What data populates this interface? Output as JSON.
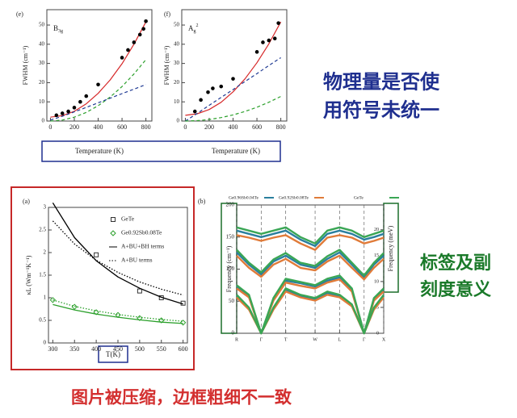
{
  "chart_data": [
    {
      "type": "scatter",
      "panel_label": "(e)",
      "label": "B",
      "label_sub": "3g",
      "ylabel": "FWHM (cm⁻¹)",
      "xlabel": "Temperature  (K)",
      "xlim": [
        -30,
        850
      ],
      "ylim": [
        0,
        58
      ],
      "xticks": [
        0,
        200,
        400,
        600,
        800
      ],
      "yticks": [
        0,
        10,
        20,
        30,
        40,
        50
      ],
      "points": {
        "color": "#000000",
        "x": [
          50,
          100,
          150,
          200,
          250,
          300,
          400,
          600,
          650,
          700,
          750,
          780,
          800
        ],
        "values": [
          3,
          4,
          5,
          7,
          10,
          13,
          19,
          33,
          37,
          41,
          45,
          48,
          52
        ]
      },
      "series": [
        {
          "color": "#d62728",
          "style": "solid",
          "x": [
            0,
            100,
            200,
            300,
            400,
            500,
            600,
            700,
            800
          ],
          "values": [
            2,
            2.8,
            5.1,
            9.0,
            14.4,
            21.4,
            29.9,
            40.0,
            51.6
          ]
        },
        {
          "color": "#2ca02c",
          "style": "dashed",
          "x": [
            0,
            100,
            200,
            300,
            400,
            500,
            600,
            700,
            800
          ],
          "values": [
            0,
            0.5,
            2,
            4.5,
            8,
            12.5,
            18,
            24.5,
            32
          ]
        },
        {
          "color": "#1f3a93",
          "style": "dashed",
          "x": [
            0,
            100,
            200,
            300,
            400,
            500,
            600,
            700,
            800
          ],
          "values": [
            0.5,
            2.5,
            4.8,
            7.1,
            9.5,
            11.9,
            14.3,
            16.6,
            19
          ]
        }
      ]
    },
    {
      "type": "scatter",
      "panel_label": "(f)",
      "label": "A",
      "label_sub": "g",
      "label_sup": "2",
      "ylabel": "FWHM (cm⁻¹)",
      "xlabel": "Temperature  (K)",
      "xlim": [
        -30,
        850
      ],
      "ylim": [
        0,
        58
      ],
      "xticks": [
        0,
        200,
        400,
        600,
        800
      ],
      "yticks": [
        0,
        10,
        20,
        30,
        40,
        50
      ],
      "points": {
        "color": "#000000",
        "x": [
          80,
          130,
          190,
          230,
          300,
          400,
          600,
          650,
          700,
          750,
          780
        ],
        "values": [
          5,
          11,
          15,
          17,
          18,
          22,
          36,
          41,
          42,
          43,
          51
        ]
      },
      "series": [
        {
          "color": "#d62728",
          "style": "solid",
          "x": [
            0,
            100,
            200,
            300,
            400,
            500,
            600,
            700,
            800
          ],
          "values": [
            3,
            3.8,
            6,
            9.8,
            15.2,
            22,
            30.4,
            40.2,
            51.6
          ]
        },
        {
          "color": "#1f3a93",
          "style": "dashed",
          "x": [
            0,
            100,
            200,
            300,
            400,
            500,
            600,
            700,
            800
          ],
          "values": [
            0,
            4,
            8.2,
            12.3,
            16.4,
            20.6,
            24.7,
            28.9,
            33
          ]
        },
        {
          "color": "#2ca02c",
          "style": "dashed",
          "x": [
            0,
            100,
            200,
            300,
            400,
            500,
            600,
            700,
            800
          ],
          "values": [
            0,
            0.2,
            0.8,
            1.8,
            3.2,
            5,
            7.2,
            9.8,
            12.8
          ]
        }
      ]
    },
    {
      "type": "line",
      "panel_label": "(a)",
      "ylabel": "κL (Wm⁻¹K⁻¹)",
      "xlabel": "T(K)",
      "xlim": [
        290,
        610
      ],
      "ylim": [
        0,
        3
      ],
      "xticks": [
        300,
        350,
        400,
        450,
        500,
        550,
        600
      ],
      "yticks": [
        0,
        0.5,
        1,
        1.5,
        2,
        2.5,
        3
      ],
      "series": [
        {
          "name": "GeTe",
          "color": "#333333",
          "marker": "square",
          "x": [
            400,
            500,
            550,
            600
          ],
          "values": [
            1.95,
            1.15,
            1.0,
            0.88
          ]
        },
        {
          "name": "Ge0.92Sb0.08Te",
          "color": "#2ca02c",
          "marker": "diamond",
          "x": [
            300,
            350,
            400,
            450,
            500,
            550,
            600
          ],
          "values": [
            0.95,
            0.8,
            0.68,
            0.62,
            0.55,
            0.5,
            0.45
          ]
        },
        {
          "name": "A+BU+BH terms",
          "color": "#000000",
          "style": "solid",
          "x": [
            300,
            350,
            400,
            450,
            500,
            550,
            600
          ],
          "values": [
            3.1,
            2.33,
            1.82,
            1.46,
            1.21,
            1.01,
            0.86
          ]
        },
        {
          "name": "A+BU terms",
          "color": "#000000",
          "style": "dotted",
          "x": [
            300,
            350,
            400,
            450,
            500,
            550,
            600
          ],
          "values": [
            2.7,
            2.19,
            1.83,
            1.56,
            1.35,
            1.19,
            1.06
          ]
        },
        {
          "color": "#2ca02c",
          "style": "solid",
          "x": [
            300,
            350,
            400,
            450,
            500,
            550,
            600
          ],
          "values": [
            0.85,
            0.73,
            0.64,
            0.57,
            0.51,
            0.46,
            0.43
          ]
        },
        {
          "color": "#2ca02c",
          "style": "dotted",
          "x": [
            300,
            350,
            400,
            450,
            500,
            550,
            600
          ],
          "values": [
            0.95,
            0.81,
            0.71,
            0.63,
            0.57,
            0.52,
            0.48
          ]
        }
      ]
    },
    {
      "type": "dispersion",
      "panel_label": "(b)",
      "ylabel": "Frequency (cm⁻¹)",
      "y2label": "Frequency (meV)",
      "grid": true,
      "xlim": [
        0,
        6
      ],
      "ylim": [
        0,
        200
      ],
      "y2lim": [
        0,
        24.8
      ],
      "xticks": [
        {
          "value": 0,
          "label": "R"
        },
        {
          "value": 1,
          "label": "Γ"
        },
        {
          "value": 2,
          "label": "T"
        },
        {
          "value": 3.2,
          "label": "W"
        },
        {
          "value": 4.2,
          "label": "L"
        },
        {
          "value": 5.2,
          "label": "Γ"
        },
        {
          "value": 6,
          "label": "X"
        }
      ],
      "yticks": [
        0,
        50,
        100,
        150,
        200
      ],
      "y2ticks": [
        0,
        5,
        10,
        15,
        20
      ],
      "x": [
        0,
        0.5,
        1,
        1.5,
        2,
        2.6,
        3.2,
        3.7,
        4.2,
        4.7,
        5.2,
        5.6,
        6
      ],
      "series": [
        {
          "name": "Ge0.96Sb0.04Te",
          "color": "#2a7f9e",
          "branches": [
            [
              58,
              39,
              0,
              39,
              68,
              58,
              53,
              63,
              58,
              44,
              0,
              39,
              58
            ],
            [
              73,
              58,
              0,
              53,
              82,
              78,
              73,
              82,
              87,
              68,
              0,
              53,
              68
            ],
            [
              126,
              107,
              92,
              112,
              121,
              107,
              102,
              116,
              126,
              107,
              87,
              107,
              121
            ],
            [
              160,
              155,
              150,
              155,
              160,
              146,
              136,
              155,
              160,
              155,
              146,
              150,
              155
            ]
          ]
        },
        {
          "name": "Ge0.92Sb0.08Te",
          "color": "#e07b39",
          "branches": [
            [
              56,
              37,
              0,
              37,
              65,
              56,
              51,
              60,
              56,
              42,
              0,
              37,
              56
            ],
            [
              70,
              56,
              0,
              51,
              79,
              74,
              70,
              79,
              84,
              65,
              0,
              51,
              65
            ],
            [
              121,
              102,
              88,
              107,
              116,
              102,
              98,
              112,
              121,
              102,
              84,
              102,
              116
            ],
            [
              153,
              149,
              144,
              149,
              153,
              140,
              130,
              149,
              153,
              149,
              140,
              144,
              149
            ]
          ]
        },
        {
          "name": "GeTe",
          "color": "#3aa655",
          "branches": [
            [
              60,
              40,
              0,
              40,
              70,
              60,
              55,
              65,
              60,
              45,
              0,
              40,
              60
            ],
            [
              75,
              60,
              0,
              55,
              85,
              80,
              75,
              85,
              90,
              70,
              0,
              55,
              70
            ],
            [
              130,
              110,
              95,
              115,
              125,
              110,
              105,
              120,
              130,
              110,
              90,
              110,
              125
            ],
            [
              165,
              160,
              155,
              160,
              165,
              150,
              140,
              160,
              165,
              160,
              150,
              155,
              160
            ]
          ]
        }
      ]
    }
  ],
  "notes": {
    "symbols": [
      "物理量是否使",
      "用符号未统一"
    ],
    "ticks": [
      "标签及副",
      "刻度意义"
    ],
    "frame": "图片被压缩，边框粗细不一致"
  }
}
